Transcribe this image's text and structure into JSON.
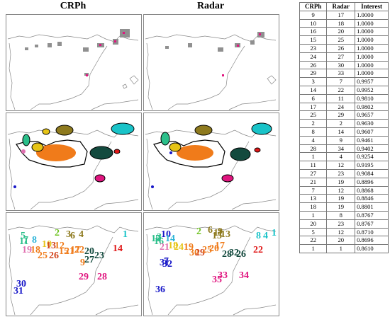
{
  "titles": {
    "left": "CRPh",
    "right": "Radar"
  },
  "table": {
    "headers": [
      "CRPh",
      "Radar",
      "Interest"
    ],
    "rows": [
      [
        "9",
        "17",
        "1.0000"
      ],
      [
        "10",
        "18",
        "1.0000"
      ],
      [
        "16",
        "20",
        "1.0000"
      ],
      [
        "15",
        "25",
        "1.0000"
      ],
      [
        "23",
        "26",
        "1.0000"
      ],
      [
        "24",
        "27",
        "1.0000"
      ],
      [
        "26",
        "30",
        "1.0000"
      ],
      [
        "29",
        "33",
        "1.0000"
      ],
      [
        "3",
        "7",
        "0.9957"
      ],
      [
        "14",
        "22",
        "0.9952"
      ],
      [
        "6",
        "11",
        "0.9810"
      ],
      [
        "17",
        "24",
        "0.9802"
      ],
      [
        "25",
        "29",
        "0.9657"
      ],
      [
        "2",
        "2",
        "0.9630"
      ],
      [
        "8",
        "14",
        "0.9607"
      ],
      [
        "4",
        "9",
        "0.9461"
      ],
      [
        "28",
        "34",
        "0.9402"
      ],
      [
        "1",
        "4",
        "0.9254"
      ],
      [
        "11",
        "12",
        "0.9195"
      ],
      [
        "27",
        "23",
        "0.9084"
      ],
      [
        "21",
        "19",
        "0.8896"
      ],
      [
        "7",
        "12",
        "0.8868"
      ],
      [
        "13",
        "19",
        "0.8846"
      ],
      [
        "18",
        "19",
        "0.8801"
      ],
      [
        "1",
        "8",
        "0.8767"
      ],
      [
        "20",
        "23",
        "0.8767"
      ],
      [
        "5",
        "12",
        "0.8710"
      ],
      [
        "22",
        "20",
        "0.8696"
      ],
      [
        "1",
        "1",
        "0.8610"
      ]
    ]
  },
  "crph_labels": [
    {
      "t": "1",
      "c": "#19c3c8"
    },
    {
      "t": "2",
      "c": "#71c425"
    },
    {
      "t": "3",
      "c": "#8e7a1e"
    },
    {
      "t": "6",
      "c": "#8e7a1e"
    },
    {
      "t": "4",
      "c": "#8e7a1e"
    },
    {
      "t": "5",
      "c": "#2bbf8a"
    },
    {
      "t": "7",
      "c": "#2bbf8a"
    },
    {
      "t": "8",
      "c": "#2db4d8"
    },
    {
      "t": "11",
      "c": "#2bbf8a"
    },
    {
      "t": "9",
      "c": "#f07b1a"
    },
    {
      "t": "10",
      "c": "#e6c416"
    },
    {
      "t": "12",
      "c": "#f07b1a"
    },
    {
      "t": "13",
      "c": "#d2451e"
    },
    {
      "t": "19",
      "c": "#e070b0"
    },
    {
      "t": "18",
      "c": "#f07b1a"
    },
    {
      "t": "25",
      "c": "#f07b1a"
    },
    {
      "t": "26",
      "c": "#d2451e"
    },
    {
      "t": "15",
      "c": "#f07b1a"
    },
    {
      "t": "21",
      "c": "#f07b1a"
    },
    {
      "t": "17",
      "c": "#f07b1a"
    },
    {
      "t": "22",
      "c": "#f07b1a"
    },
    {
      "t": "20",
      "c": "#134a3e"
    },
    {
      "t": "27",
      "c": "#134a3e"
    },
    {
      "t": "23",
      "c": "#134a3e"
    },
    {
      "t": "14",
      "c": "#e01818"
    },
    {
      "t": "29",
      "c": "#e0157f"
    },
    {
      "t": "28",
      "c": "#e0157f"
    },
    {
      "t": "30",
      "c": "#1717c8"
    },
    {
      "t": "31",
      "c": "#1717c8"
    }
  ],
  "radar_labels": [
    {
      "t": "1",
      "c": "#19c3c8"
    },
    {
      "t": "4",
      "c": "#19c3c8"
    },
    {
      "t": "8",
      "c": "#19c3c8"
    },
    {
      "t": "2",
      "c": "#71c425"
    },
    {
      "t": "6",
      "c": "#8e7a1e"
    },
    {
      "t": "11",
      "c": "#8e7a1e"
    },
    {
      "t": "9",
      "c": "#8e7a1e"
    },
    {
      "t": "13",
      "c": "#8e7a1e"
    },
    {
      "t": "15",
      "c": "#8e7a1e"
    },
    {
      "t": "3",
      "c": "#2bbf8a"
    },
    {
      "t": "10",
      "c": "#1717c8"
    },
    {
      "t": "14",
      "c": "#2db4d8"
    },
    {
      "t": "12",
      "c": "#2bbf8a"
    },
    {
      "t": "16",
      "c": "#2bbf8a"
    },
    {
      "t": "5",
      "c": "#2bbf8a"
    },
    {
      "t": "21",
      "c": "#e070b0"
    },
    {
      "t": "18",
      "c": "#e6c416"
    },
    {
      "t": "24",
      "c": "#e6c416"
    },
    {
      "t": "19",
      "c": "#f07b1a"
    },
    {
      "t": "30",
      "c": "#f07b1a"
    },
    {
      "t": "29",
      "c": "#d2451e"
    },
    {
      "t": "25",
      "c": "#f07b1a"
    },
    {
      "t": "20",
      "c": "#f07b1a"
    },
    {
      "t": "17",
      "c": "#f07b1a"
    },
    {
      "t": "28",
      "c": "#134a3e"
    },
    {
      "t": "32",
      "c": "#134a3e"
    },
    {
      "t": "26",
      "c": "#134a3e"
    },
    {
      "t": "22",
      "c": "#e01818"
    },
    {
      "t": "33",
      "c": "#e0157f"
    },
    {
      "t": "34",
      "c": "#e0157f"
    },
    {
      "t": "35",
      "c": "#e0157f"
    },
    {
      "t": "31",
      "c": "#1717c8"
    },
    {
      "t": "32",
      "c": "#1717c8"
    },
    {
      "t": "36",
      "c": "#1717c8"
    },
    {
      "t": "7",
      "c": "#1717c8"
    }
  ]
}
